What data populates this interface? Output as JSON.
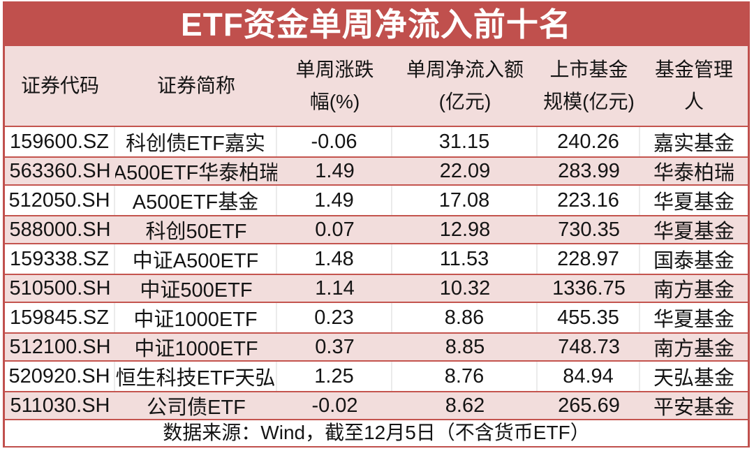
{
  "title": "ETF资金单周净流入前十名",
  "footer": {
    "text": "数据来源：Wind，截至12月5日（不含货币ETF）"
  },
  "colors": {
    "title_background_red": "#C0504D",
    "title_text_white": "#FFFFFF",
    "row_pink": "#F2DDDC",
    "row_border_red": "#C4544E",
    "white_row_separator": "#EBEBEB",
    "text_black": "#141414"
  },
  "table": {
    "columns": [
      {
        "key": "code",
        "label": "证券代码",
        "label_lines": [
          "证券代码"
        ]
      },
      {
        "key": "name",
        "label": "证券简称",
        "label_lines": [
          "证券简称"
        ]
      },
      {
        "key": "change",
        "label": "单周涨跌幅(%)",
        "label_lines": [
          "单周涨跌",
          "幅(%)"
        ]
      },
      {
        "key": "inflow",
        "label": "单周净流入额(亿元)",
        "label_lines": [
          "单周净流入额",
          "(亿元)"
        ]
      },
      {
        "key": "size",
        "label": "上市基金规模(亿元)",
        "label_lines": [
          "上市基金",
          "规模(亿元)"
        ]
      },
      {
        "key": "manager",
        "label": "基金管理人",
        "label_lines": [
          "基金管理",
          "人"
        ]
      }
    ],
    "rows": [
      [
        "159600.SZ",
        "科创债ETF嘉实",
        "-0.06",
        "31.15",
        "240.26",
        "嘉实基金"
      ],
      [
        "563360.SH",
        "A500ETF华泰柏瑞",
        "1.49",
        "22.09",
        "283.99",
        "华泰柏瑞"
      ],
      [
        "512050.SH",
        "A500ETF基金",
        "1.49",
        "17.08",
        "223.16",
        "华夏基金"
      ],
      [
        "588000.SH",
        "科创50ETF",
        "0.07",
        "12.98",
        "730.35",
        "华夏基金"
      ],
      [
        "159338.SZ",
        "中证A500ETF",
        "1.48",
        "11.53",
        "228.97",
        "国泰基金"
      ],
      [
        "510500.SH",
        "中证500ETF",
        "1.14",
        "10.32",
        "1336.75",
        "南方基金"
      ],
      [
        "159845.SZ",
        "中证1000ETF",
        "0.23",
        "8.86",
        "455.35",
        "华夏基金"
      ],
      [
        "512100.SH",
        "中证1000ETF",
        "0.37",
        "8.85",
        "748.73",
        "南方基金"
      ],
      [
        "520920.SH",
        "恒生科技ETF天弘",
        "1.25",
        "8.76",
        "84.94",
        "天弘基金"
      ],
      [
        "511030.SH",
        "公司债ETF",
        "-0.02",
        "8.62",
        "265.69",
        "平安基金"
      ]
    ]
  },
  "chart_data": {
    "type": "table",
    "title": "ETF资金单周净流入前十名",
    "columns": [
      "证券代码",
      "证券简称",
      "单周涨跌幅(%)",
      "单周净流入额(亿元)",
      "上市基金规模(亿元)",
      "基金管理人"
    ],
    "rows": [
      [
        "159600.SZ",
        "科创债ETF嘉实",
        -0.06,
        31.15,
        240.26,
        "嘉实基金"
      ],
      [
        "563360.SH",
        "A500ETF华泰柏瑞",
        1.49,
        22.09,
        283.99,
        "华泰柏瑞"
      ],
      [
        "512050.SH",
        "A500ETF基金",
        1.49,
        17.08,
        223.16,
        "华夏基金"
      ],
      [
        "588000.SH",
        "科创50ETF",
        0.07,
        12.98,
        730.35,
        "华夏基金"
      ],
      [
        "159338.SZ",
        "中证A500ETF",
        1.48,
        11.53,
        228.97,
        "国泰基金"
      ],
      [
        "510500.SH",
        "中证500ETF",
        1.14,
        10.32,
        1336.75,
        "南方基金"
      ],
      [
        "159845.SZ",
        "中证1000ETF",
        0.23,
        8.86,
        455.35,
        "华夏基金"
      ],
      [
        "512100.SH",
        "中证1000ETF",
        0.37,
        8.85,
        748.73,
        "南方基金"
      ],
      [
        "520920.SH",
        "恒生科技ETF天弘",
        1.25,
        8.76,
        84.94,
        "天弘基金"
      ],
      [
        "511030.SH",
        "公司债ETF",
        -0.02,
        8.62,
        265.69,
        "平安基金"
      ]
    ],
    "footnote": "数据来源：Wind，截至12月5日（不含货币ETF）"
  }
}
